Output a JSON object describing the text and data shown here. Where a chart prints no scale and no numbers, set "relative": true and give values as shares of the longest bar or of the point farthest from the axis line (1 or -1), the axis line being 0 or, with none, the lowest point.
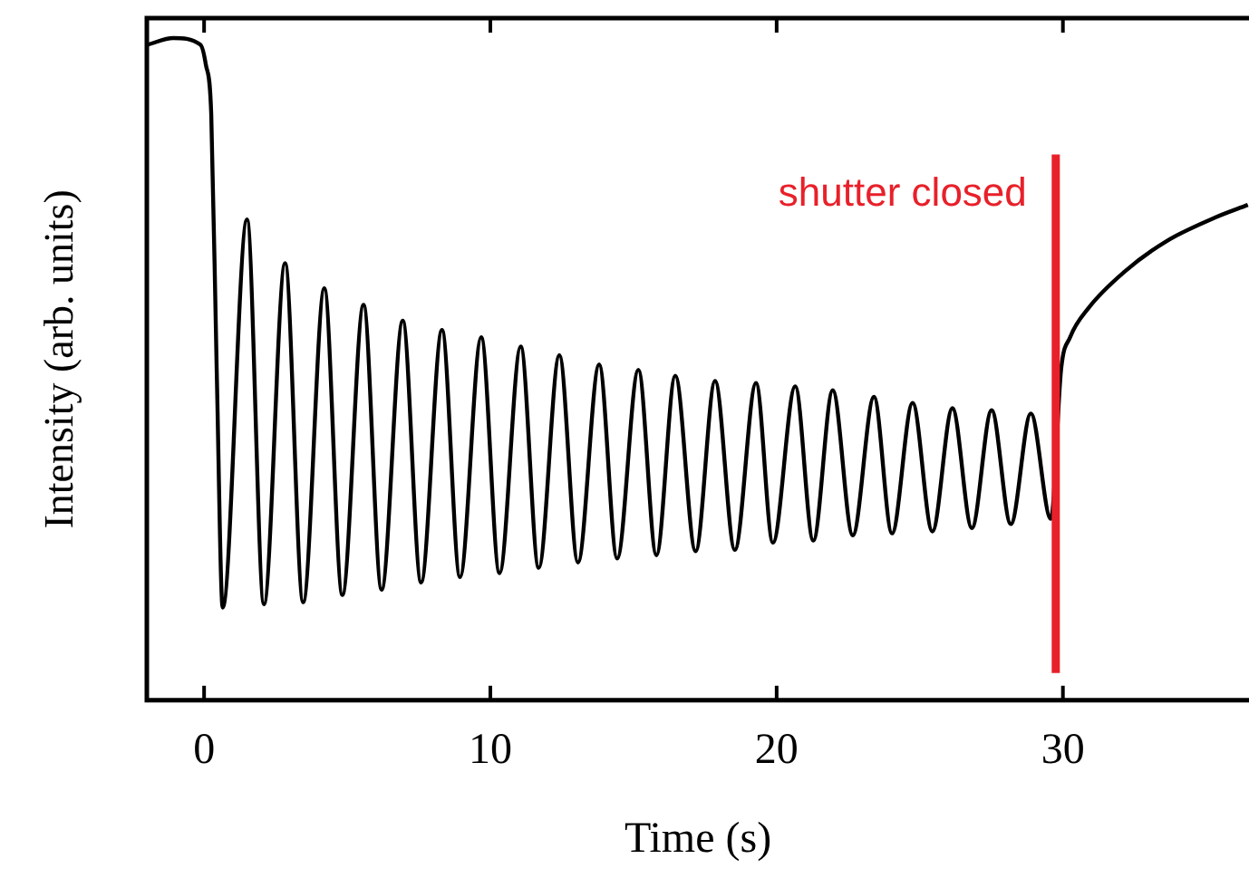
{
  "chart_data": {
    "type": "line",
    "xlabel": "Time (s)",
    "ylabel": "Intensity (arb. units)",
    "relative": true,
    "xlim": [
      -2,
      36.5
    ],
    "xticks": [
      0,
      10,
      20,
      30
    ],
    "tick_labels": "x",
    "grid": false,
    "legend": false,
    "marker": "none",
    "line_style": "solid",
    "ref_lines": [
      {
        "axis": "x",
        "value": 29.75,
        "label": "shutter closed",
        "color": "#e8202a"
      }
    ],
    "series": [
      {
        "color": "#000000",
        "x": [
          -1.96,
          -1.08,
          -0.13,
          0.06,
          0.25,
          0.44,
          0.65,
          1.5,
          2.09,
          2.83,
          3.46,
          4.2,
          4.83,
          5.57,
          6.2,
          6.94,
          7.58,
          8.31,
          8.94,
          9.68,
          10.32,
          11.06,
          11.69,
          12.41,
          13.06,
          13.8,
          14.43,
          15.17,
          15.8,
          16.46,
          17.17,
          17.85,
          18.54,
          19.28,
          19.87,
          20.65,
          21.28,
          21.96,
          22.66,
          23.4,
          24.03,
          24.75,
          25.44,
          26.14,
          26.82,
          27.51,
          28.18,
          28.88,
          29.58,
          29.94,
          30.25,
          30.89,
          32.15,
          33.61,
          35.32,
          36.46
        ],
        "values": [
          0.99,
          1,
          0.99,
          0.96,
          0.885,
          0.5,
          0.14,
          0.726,
          0.145,
          0.66,
          0.148,
          0.622,
          0.159,
          0.597,
          0.167,
          0.573,
          0.178,
          0.559,
          0.186,
          0.548,
          0.192,
          0.534,
          0.2,
          0.521,
          0.208,
          0.507,
          0.214,
          0.499,
          0.219,
          0.49,
          0.225,
          0.482,
          0.227,
          0.479,
          0.238,
          0.474,
          0.241,
          0.468,
          0.249,
          0.458,
          0.252,
          0.449,
          0.255,
          0.441,
          0.26,
          0.438,
          0.266,
          0.433,
          0.274,
          0.501,
          0.548,
          0.592,
          0.647,
          0.693,
          0.729,
          0.748
        ]
      }
    ]
  }
}
